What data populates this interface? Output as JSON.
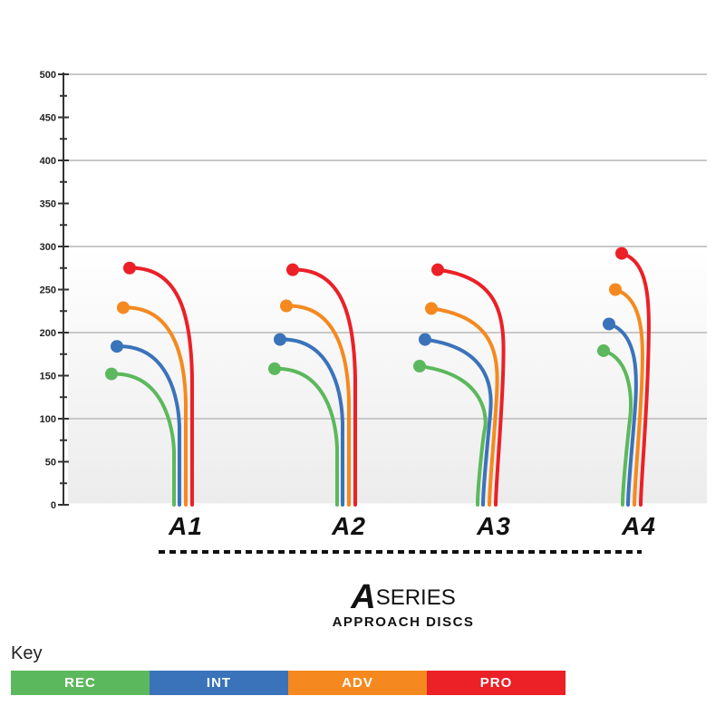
{
  "colors": {
    "REC": "#5cb85c",
    "INT": "#3a73ba",
    "ADV": "#f5891f",
    "PRO": "#ec2027"
  },
  "chart_data": {
    "type": "line",
    "ylim": [
      0,
      500
    ],
    "yticks": [
      "0",
      "50",
      "100",
      "150",
      "200",
      "250",
      "300",
      "350",
      "400",
      "450",
      "500"
    ],
    "categories": [
      "A1",
      "A2",
      "A3",
      "A4"
    ],
    "series": [
      {
        "name": "REC",
        "values": [
          152,
          158,
          161,
          179
        ]
      },
      {
        "name": "INT",
        "values": [
          184,
          192,
          192,
          210
        ]
      },
      {
        "name": "ADV",
        "values": [
          229,
          231,
          228,
          250
        ]
      },
      {
        "name": "PRO",
        "values": [
          275,
          273,
          273,
          292
        ]
      }
    ]
  },
  "title": {
    "letter": "A",
    "word": "SERIES",
    "subtitle": "APPROACH DISCS"
  },
  "key": {
    "title": "Key",
    "items": [
      "REC",
      "INT",
      "ADV",
      "PRO"
    ]
  }
}
